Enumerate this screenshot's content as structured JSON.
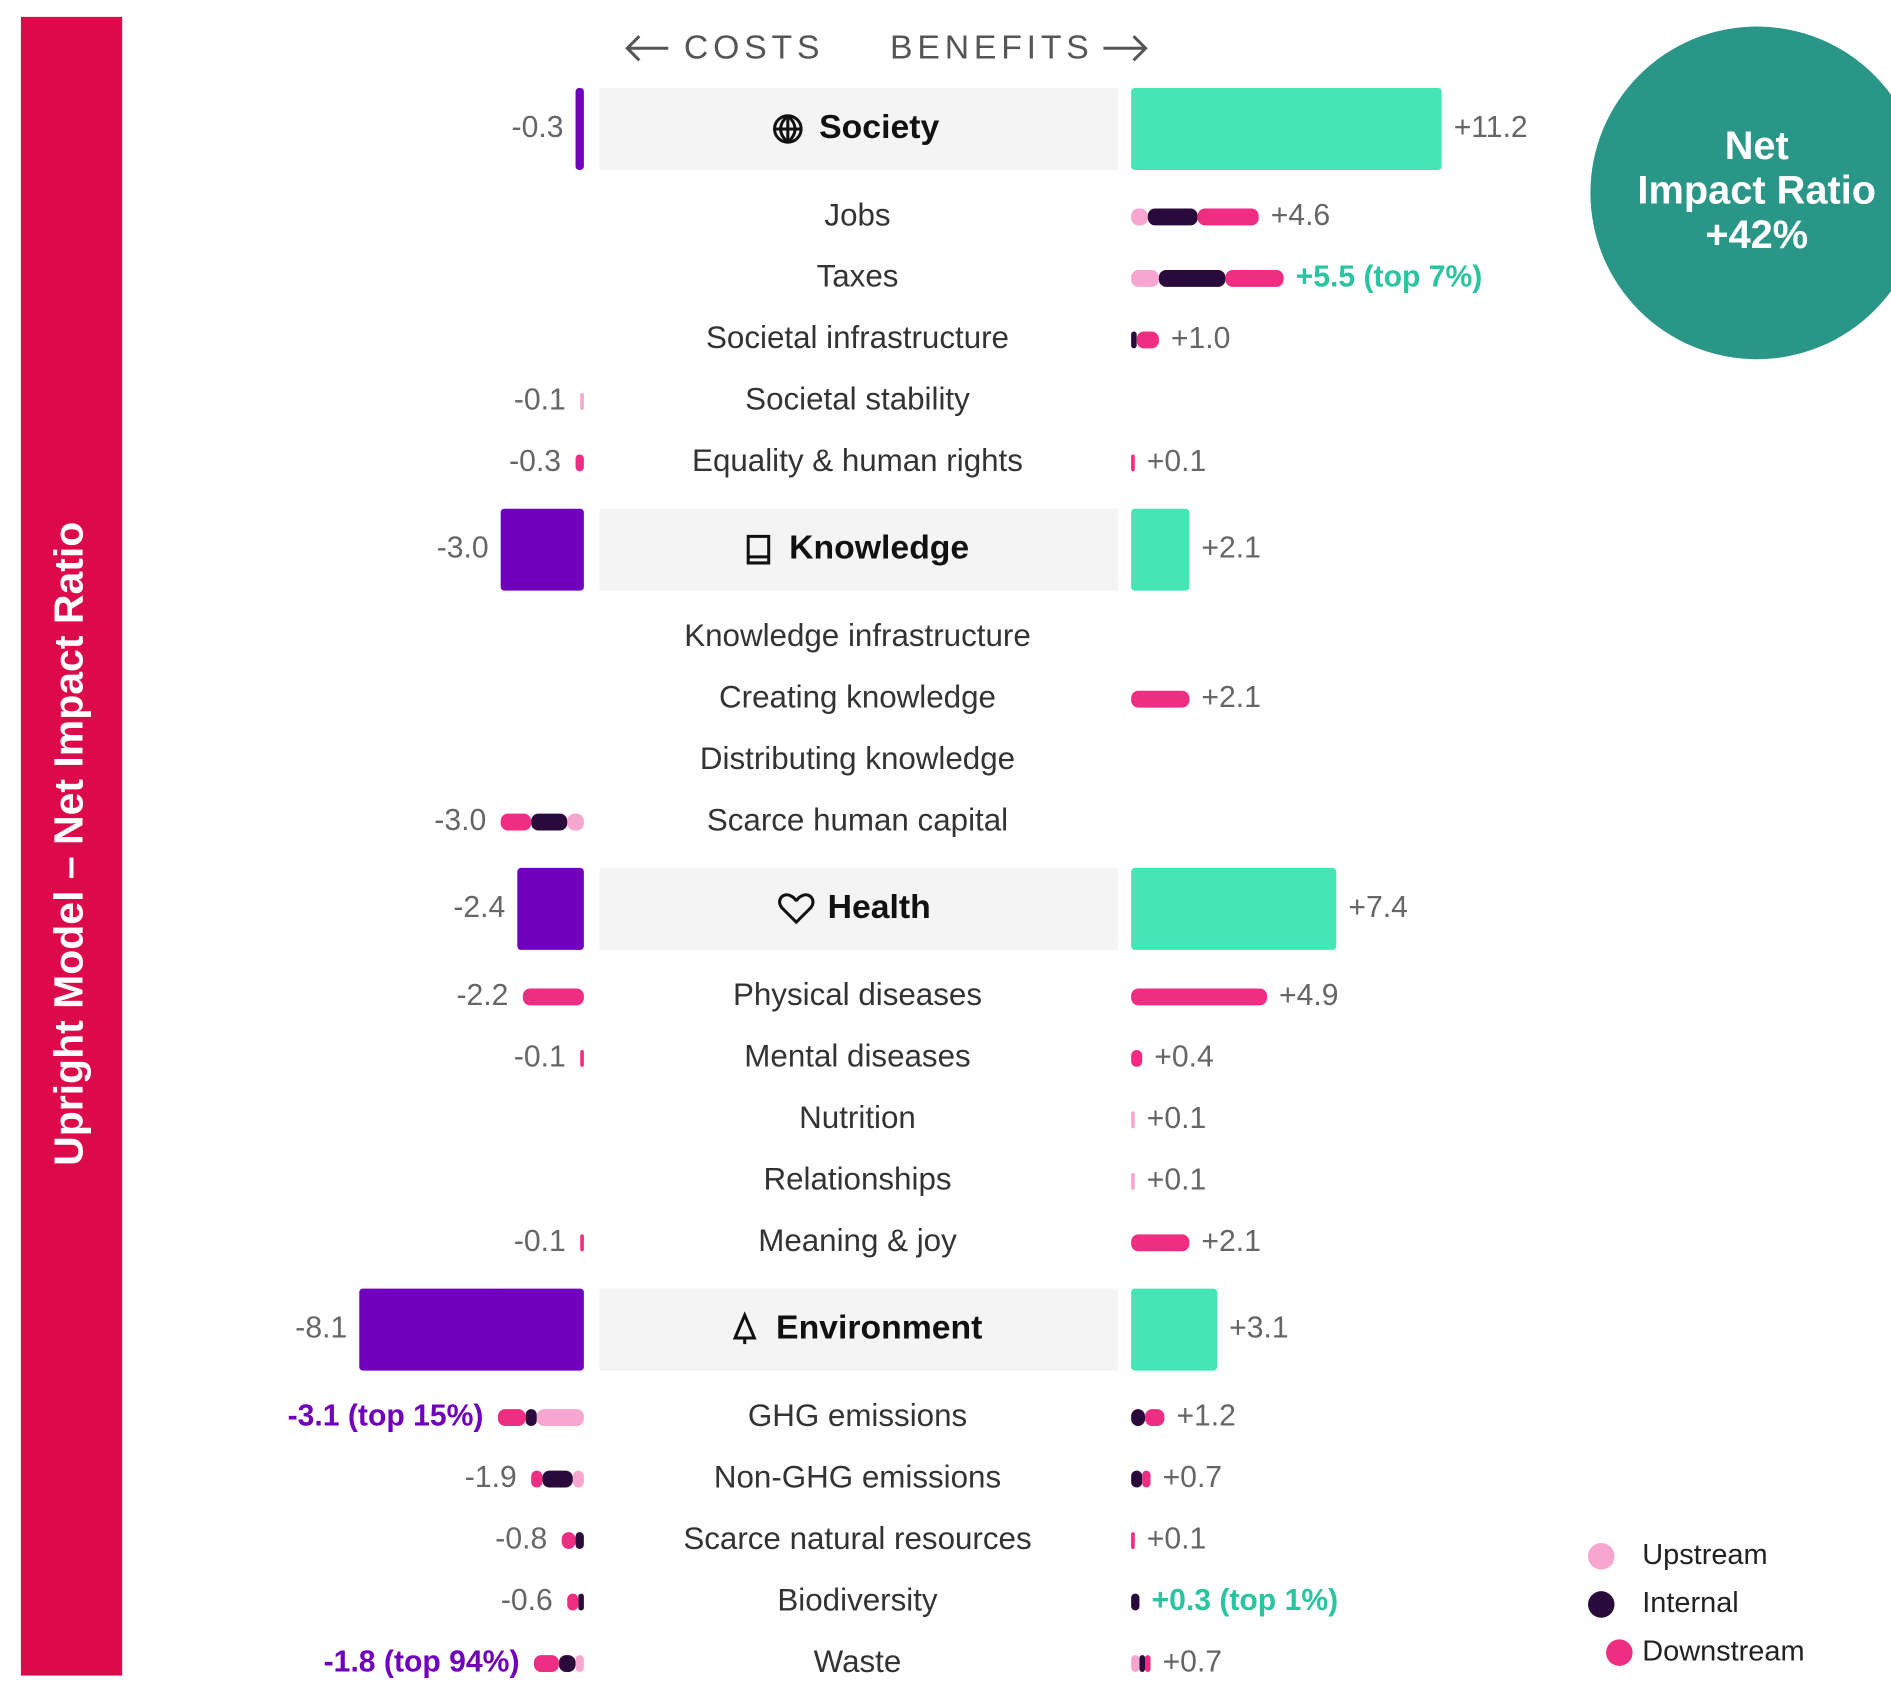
{
  "chart_data": {
    "type": "diverging-bar",
    "side_title": "Upright Model – Net Impact Ratio",
    "cost_heading": "COSTS",
    "benefit_heading": "BENEFITS",
    "badge": {
      "lines": [
        "Net",
        "Impact Ratio"
      ],
      "value": "+42%",
      "color": "#2a9688"
    },
    "cost_color": "#7000bb",
    "benefit_color": "#44e6b5",
    "highlight_colors": {
      "cost": "#7000bb",
      "benefit": "#2bc4a0"
    },
    "legend": [
      {
        "name": "Upstream",
        "color": "#f7a6cf"
      },
      {
        "name": "Internal",
        "color": "#2a0a3a"
      },
      {
        "name": "Downstream",
        "color": "#ef2d82"
      }
    ],
    "groups": [
      {
        "name": "Society",
        "cost": -0.3,
        "cost_label": "-0.3",
        "benefit": 11.2,
        "benefit_label": "+11.2",
        "rows": [
          {
            "label": "Jobs",
            "benefit": 4.6,
            "benefit_label": "+4.6",
            "benefit_parts": [
              0.6,
              1.8,
              2.2
            ]
          },
          {
            "label": "Taxes",
            "benefit": 5.5,
            "benefit_label": "+5.5 (top 7%)",
            "benefit_parts": [
              1.0,
              2.4,
              2.1
            ],
            "benefit_highlight": true
          },
          {
            "label": "Societal infrastructure",
            "benefit": 1.0,
            "benefit_label": "+1.0",
            "benefit_parts": [
              0,
              0.2,
              0.8
            ]
          },
          {
            "label": "Societal stability",
            "cost": -0.1,
            "cost_label": "-0.1",
            "cost_parts": [
              0.1,
              0,
              0
            ]
          },
          {
            "label": "Equality & human rights",
            "cost": -0.3,
            "cost_label": "-0.3",
            "cost_parts": [
              0,
              0,
              0.3
            ],
            "benefit": 0.1,
            "benefit_label": "+0.1",
            "benefit_parts": [
              0,
              0,
              0.1
            ]
          }
        ]
      },
      {
        "name": "Knowledge",
        "cost": -3.0,
        "cost_label": "-3.0",
        "benefit": 2.1,
        "benefit_label": "+2.1",
        "rows": [
          {
            "label": "Knowledge infrastructure"
          },
          {
            "label": "Creating knowledge",
            "benefit": 2.1,
            "benefit_label": "+2.1",
            "benefit_parts": [
              0,
              0,
              2.1
            ]
          },
          {
            "label": "Distributing knowledge"
          },
          {
            "label": "Scarce human capital",
            "cost": -3.0,
            "cost_label": "-3.0",
            "cost_parts": [
              0.6,
              1.3,
              1.1
            ]
          }
        ]
      },
      {
        "name": "Health",
        "cost": -2.4,
        "cost_label": "-2.4",
        "benefit": 7.4,
        "benefit_label": "+7.4",
        "rows": [
          {
            "label": "Physical diseases",
            "cost": -2.2,
            "cost_label": "-2.2",
            "cost_parts": [
              0,
              0,
              2.2
            ],
            "benefit": 4.9,
            "benefit_label": "+4.9",
            "benefit_parts": [
              0,
              0,
              4.9
            ]
          },
          {
            "label": "Mental diseases",
            "cost": -0.1,
            "cost_label": "-0.1",
            "cost_parts": [
              0,
              0,
              0.1
            ],
            "benefit": 0.4,
            "benefit_label": "+0.4",
            "benefit_parts": [
              0,
              0,
              0.4
            ]
          },
          {
            "label": "Nutrition",
            "benefit": 0.1,
            "benefit_label": "+0.1",
            "benefit_parts": [
              0.1,
              0,
              0
            ]
          },
          {
            "label": "Relationships",
            "benefit": 0.1,
            "benefit_label": "+0.1",
            "benefit_parts": [
              0.1,
              0,
              0
            ]
          },
          {
            "label": "Meaning & joy",
            "cost": -0.1,
            "cost_label": "-0.1",
            "cost_parts": [
              0,
              0,
              0.1
            ],
            "benefit": 2.1,
            "benefit_label": "+2.1",
            "benefit_parts": [
              0,
              0,
              2.1
            ]
          }
        ]
      },
      {
        "name": "Environment",
        "cost": -8.1,
        "cost_label": "-8.1",
        "benefit": 3.1,
        "benefit_label": "+3.1",
        "rows": [
          {
            "label": "GHG emissions",
            "cost": -3.1,
            "cost_label": "-3.1 (top 15%)",
            "cost_parts": [
              1.7,
              0.4,
              1.0
            ],
            "cost_highlight": true,
            "benefit": 1.2,
            "benefit_label": "+1.2",
            "benefit_parts": [
              0,
              0.5,
              0.7
            ]
          },
          {
            "label": "Non-GHG emissions",
            "cost": -1.9,
            "cost_label": "-1.9",
            "cost_parts": [
              0.4,
              1.1,
              0.4
            ],
            "benefit": 0.7,
            "benefit_label": "+0.7",
            "benefit_parts": [
              0,
              0.4,
              0.3
            ]
          },
          {
            "label": "Scarce natural resources",
            "cost": -0.8,
            "cost_label": "-0.8",
            "cost_parts": [
              0,
              0.3,
              0.5
            ],
            "benefit": 0.1,
            "benefit_label": "+0.1",
            "benefit_parts": [
              0,
              0,
              0.1
            ]
          },
          {
            "label": "Biodiversity",
            "cost": -0.6,
            "cost_label": "-0.6",
            "cost_parts": [
              0,
              0.2,
              0.4
            ],
            "benefit": 0.3,
            "benefit_label": "+0.3 (top 1%)",
            "benefit_parts": [
              0,
              0.3,
              0
            ],
            "benefit_highlight": true
          },
          {
            "label": "Waste",
            "cost": -1.8,
            "cost_label": "-1.8 (top 94%)",
            "cost_parts": [
              0.3,
              0.6,
              0.9
            ],
            "cost_highlight": true,
            "benefit": 0.7,
            "benefit_label": "+0.7",
            "benefit_parts": [
              0.3,
              0.2,
              0.2
            ]
          }
        ]
      }
    ]
  }
}
